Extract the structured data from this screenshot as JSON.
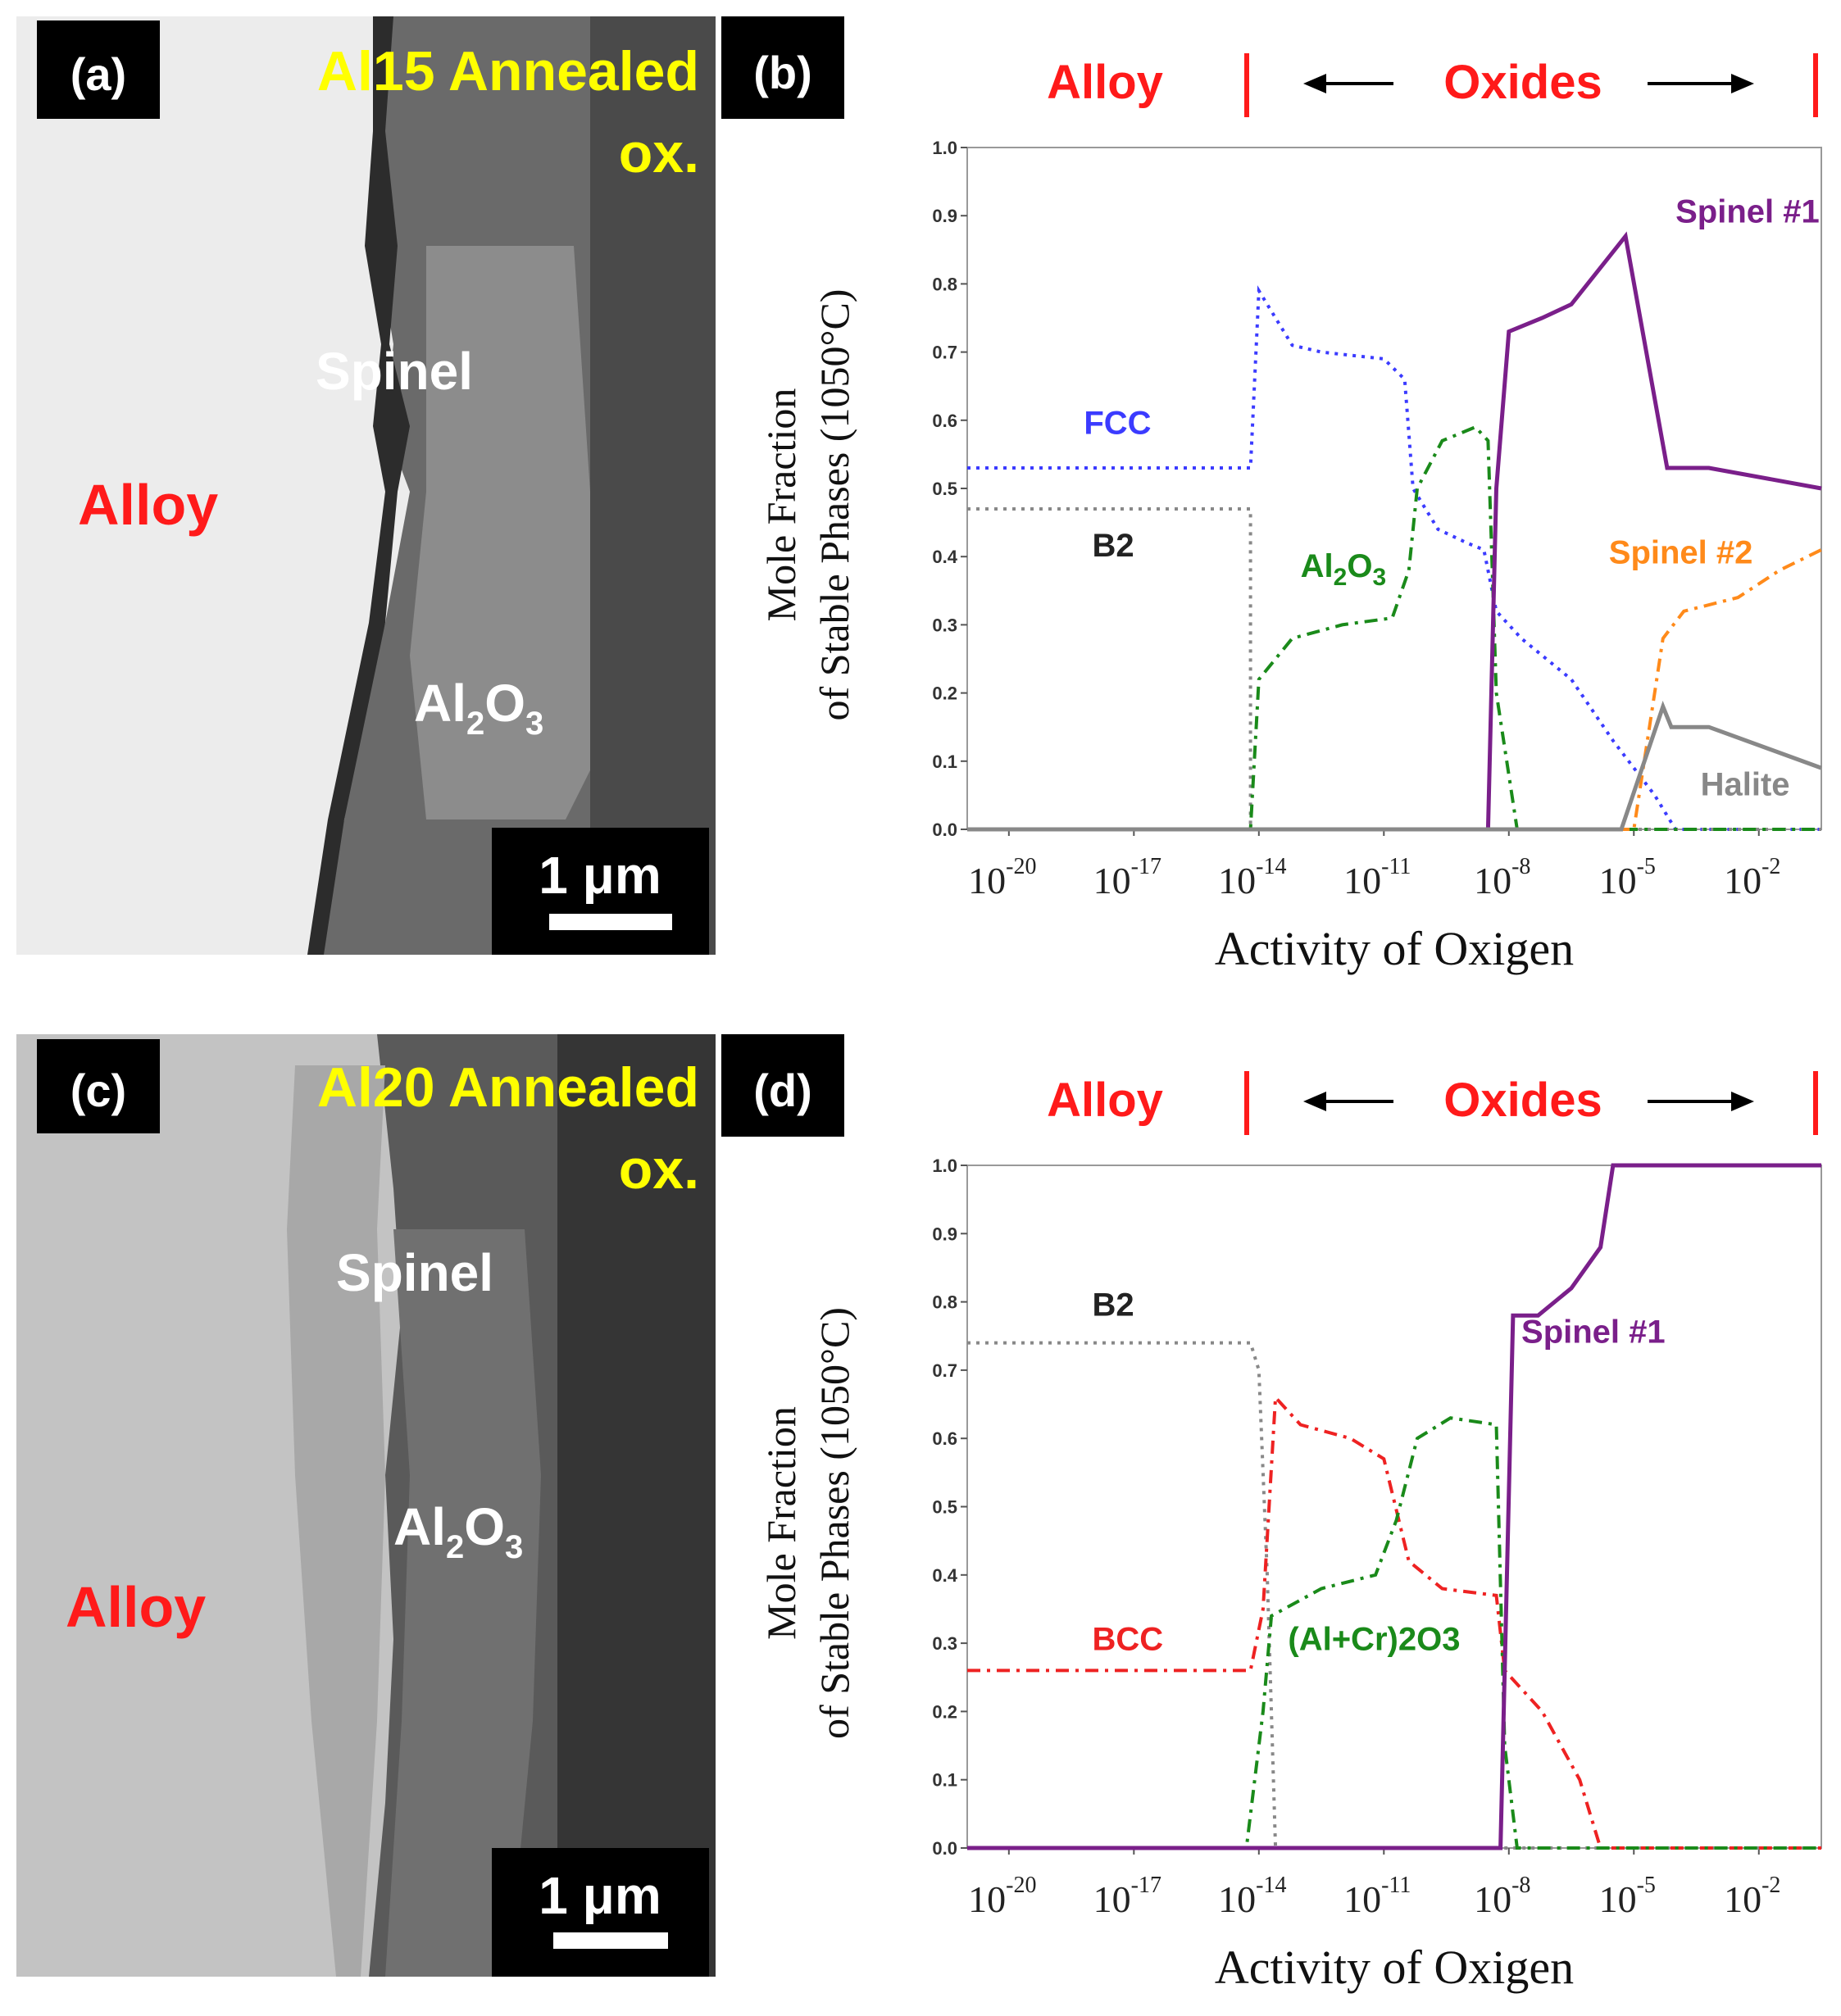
{
  "panels": {
    "a": {
      "tag": "(a)",
      "title_line1": "Al15 Annealed",
      "title_line2": "ox.",
      "labels": {
        "alloy": "Alloy",
        "spinel": "Spinel",
        "oxide": "Al",
        "oxide_sub1": "2",
        "oxide_mid": "O",
        "oxide_sub2": "3"
      },
      "scale_bar": "1 μm"
    },
    "c": {
      "tag": "(c)",
      "title_line1": "Al20 Annealed",
      "title_line2": "ox.",
      "labels": {
        "alloy": "Alloy",
        "spinel": "Spinel",
        "oxide": "Al",
        "oxide_sub1": "2",
        "oxide_mid": "O",
        "oxide_sub2": "3"
      },
      "scale_bar": "1 μm"
    },
    "b": {
      "tag": "(b)"
    },
    "d": {
      "tag": "(d)"
    }
  },
  "colors": {
    "fcc": "#3b3bff",
    "b2": "#888888",
    "al2o3": "#1a8a1a",
    "spinel1": "#7a1f8a",
    "spinel2": "#ff8a1a",
    "halite": "#888888",
    "bcc": "#ee2222",
    "header_red": "#ff1a1a",
    "title_yellow": "#ffff00"
  },
  "chart_data": [
    {
      "type": "line",
      "panel": "b",
      "header": {
        "alloy": "Alloy",
        "oxides": "Oxides"
      },
      "xlabel": "Activity of Oxigen",
      "ylabel_line1": "Mole Fraction",
      "ylabel_line2": "of Stable Phases (1050°C)",
      "x_scale": "log",
      "xlim_exp": [
        -21,
        -0.5
      ],
      "ylim": [
        0,
        1
      ],
      "x_ticks": [
        {
          "base": "10",
          "exp": "-20",
          "value_exp": -20
        },
        {
          "base": "10",
          "exp": "-17",
          "value_exp": -17
        },
        {
          "base": "10",
          "exp": "-14",
          "value_exp": -14
        },
        {
          "base": "10",
          "exp": "-11",
          "value_exp": -11
        },
        {
          "base": "10",
          "exp": "-8",
          "value_exp": -8
        },
        {
          "base": "10",
          "exp": "-5",
          "value_exp": -5
        },
        {
          "base": "10",
          "exp": "-2",
          "value_exp": -2
        }
      ],
      "y_ticks": [
        "0.0",
        "0.1",
        "0.2",
        "0.3",
        "0.4",
        "0.5",
        "0.6",
        "0.7",
        "0.8",
        "0.9",
        "1.0"
      ],
      "series": [
        {
          "name": "FCC",
          "color_key": "fcc",
          "dash": "dotted",
          "points": [
            [
              -21,
              0.53
            ],
            [
              -14.2,
              0.53
            ],
            [
              -14,
              0.79
            ],
            [
              -13.2,
              0.71
            ],
            [
              -12.5,
              0.7
            ],
            [
              -11,
              0.69
            ],
            [
              -10.5,
              0.66
            ],
            [
              -10.3,
              0.5
            ],
            [
              -9.7,
              0.44
            ],
            [
              -9,
              0.42
            ],
            [
              -8.6,
              0.41
            ],
            [
              -8.3,
              0.32
            ],
            [
              -7.7,
              0.28
            ],
            [
              -6.5,
              0.22
            ],
            [
              -5.5,
              0.13
            ],
            [
              -4.5,
              0.05
            ],
            [
              -4,
              0
            ],
            [
              -0.5,
              0
            ]
          ]
        },
        {
          "name": "B2",
          "color_key": "b2",
          "dash": "dotted",
          "points": [
            [
              -21,
              0.47
            ],
            [
              -14.2,
              0.47
            ],
            [
              -14.2,
              0
            ],
            [
              -0.5,
              0
            ]
          ]
        },
        {
          "name": "Al2O3",
          "color_key": "al2o3",
          "dash": "dashdot",
          "points": [
            [
              -21,
              0
            ],
            [
              -14.2,
              0
            ],
            [
              -14,
              0.22
            ],
            [
              -13.2,
              0.28
            ],
            [
              -12,
              0.3
            ],
            [
              -10.8,
              0.31
            ],
            [
              -10.4,
              0.38
            ],
            [
              -10.2,
              0.5
            ],
            [
              -9.6,
              0.57
            ],
            [
              -8.8,
              0.59
            ],
            [
              -8.5,
              0.57
            ],
            [
              -8.3,
              0.2
            ],
            [
              -7.8,
              0
            ],
            [
              -0.5,
              0
            ]
          ]
        },
        {
          "name": "Spinel #1",
          "color_key": "spinel1",
          "points": [
            [
              -21,
              0
            ],
            [
              -8.5,
              0
            ],
            [
              -8.3,
              0.5
            ],
            [
              -8,
              0.73
            ],
            [
              -7.2,
              0.75
            ],
            [
              -6.5,
              0.77
            ],
            [
              -5.2,
              0.87
            ],
            [
              -4.2,
              0.53
            ],
            [
              -3.2,
              0.53
            ],
            [
              -0.5,
              0.5
            ]
          ]
        },
        {
          "name": "Spinel #2",
          "color_key": "spinel2",
          "dash": "dashdot",
          "points": [
            [
              -21,
              0
            ],
            [
              -5,
              0
            ],
            [
              -4.3,
              0.28
            ],
            [
              -3.8,
              0.32
            ],
            [
              -2.5,
              0.34
            ],
            [
              -1.5,
              0.38
            ],
            [
              -0.5,
              0.41
            ]
          ]
        },
        {
          "name": "Halite",
          "color_key": "halite",
          "points": [
            [
              -21,
              0
            ],
            [
              -5.3,
              0
            ],
            [
              -4.3,
              0.18
            ],
            [
              -4.1,
              0.15
            ],
            [
              -3.2,
              0.15
            ],
            [
              -0.5,
              0.09
            ]
          ]
        }
      ],
      "annotations": {
        "fcc": "FCC",
        "b2": "B2",
        "al2o3": "Al",
        "al2o3_sub": "2",
        "al2o3_mid": "O",
        "al2o3_sub2": "3",
        "spinel1": "Spinel #1",
        "spinel2": "Spinel #2",
        "halite": "Halite"
      }
    },
    {
      "type": "line",
      "panel": "d",
      "header": {
        "alloy": "Alloy",
        "oxides": "Oxides"
      },
      "xlabel": "Activity of Oxigen",
      "ylabel_line1": "Mole Fraction",
      "ylabel_line2": "of Stable Phases (1050°C)",
      "x_scale": "log",
      "xlim_exp": [
        -21,
        -0.5
      ],
      "ylim": [
        0,
        1
      ],
      "x_ticks": [
        {
          "base": "10",
          "exp": "-20",
          "value_exp": -20
        },
        {
          "base": "10",
          "exp": "-17",
          "value_exp": -17
        },
        {
          "base": "10",
          "exp": "-14",
          "value_exp": -14
        },
        {
          "base": "10",
          "exp": "-11",
          "value_exp": -11
        },
        {
          "base": "10",
          "exp": "-8",
          "value_exp": -8
        },
        {
          "base": "10",
          "exp": "-5",
          "value_exp": -5
        },
        {
          "base": "10",
          "exp": "-2",
          "value_exp": -2
        }
      ],
      "y_ticks": [
        "0.0",
        "0.1",
        "0.2",
        "0.3",
        "0.4",
        "0.5",
        "0.6",
        "0.7",
        "0.8",
        "0.9",
        "1.0"
      ],
      "series": [
        {
          "name": "B2",
          "color_key": "b2",
          "dash": "dotted",
          "points": [
            [
              -21,
              0.74
            ],
            [
              -14.2,
              0.74
            ],
            [
              -14,
              0.7
            ],
            [
              -13.8,
              0.4
            ],
            [
              -13.6,
              0
            ],
            [
              -0.5,
              0
            ]
          ]
        },
        {
          "name": "BCC",
          "color_key": "bcc",
          "dash": "dashdot",
          "points": [
            [
              -21,
              0.26
            ],
            [
              -14.2,
              0.26
            ],
            [
              -13.9,
              0.35
            ],
            [
              -13.6,
              0.66
            ],
            [
              -13,
              0.62
            ],
            [
              -11.8,
              0.6
            ],
            [
              -11,
              0.57
            ],
            [
              -10.4,
              0.42
            ],
            [
              -9.6,
              0.38
            ],
            [
              -8.3,
              0.37
            ],
            [
              -8.1,
              0.26
            ],
            [
              -7.2,
              0.2
            ],
            [
              -6.3,
              0.1
            ],
            [
              -5.8,
              0
            ],
            [
              -0.5,
              0
            ]
          ]
        },
        {
          "name": "(Al+Cr)2O3",
          "color_key": "al2o3",
          "dash": "dashdot",
          "points": [
            [
              -21,
              0
            ],
            [
              -14.3,
              0
            ],
            [
              -13.9,
              0.2
            ],
            [
              -13.7,
              0.34
            ],
            [
              -12.5,
              0.38
            ],
            [
              -11.2,
              0.4
            ],
            [
              -10.7,
              0.48
            ],
            [
              -10.2,
              0.6
            ],
            [
              -9.4,
              0.63
            ],
            [
              -8.3,
              0.62
            ],
            [
              -8.1,
              0.15
            ],
            [
              -7.8,
              0
            ],
            [
              -0.5,
              0
            ]
          ]
        },
        {
          "name": "Spinel #1",
          "color_key": "spinel1",
          "points": [
            [
              -21,
              0
            ],
            [
              -8.2,
              0
            ],
            [
              -7.9,
              0.78
            ],
            [
              -7.3,
              0.78
            ],
            [
              -6.5,
              0.82
            ],
            [
              -5.8,
              0.88
            ],
            [
              -5.5,
              1.0
            ],
            [
              -0.5,
              1.0
            ]
          ]
        }
      ],
      "annotations": {
        "b2": "B2",
        "bcc": "BCC",
        "alcr_pre": "(Al+Cr)",
        "alcr_sub": "2",
        "alcr_mid": "O",
        "alcr_sub2": "3",
        "spinel1": "Spinel #1"
      }
    }
  ]
}
